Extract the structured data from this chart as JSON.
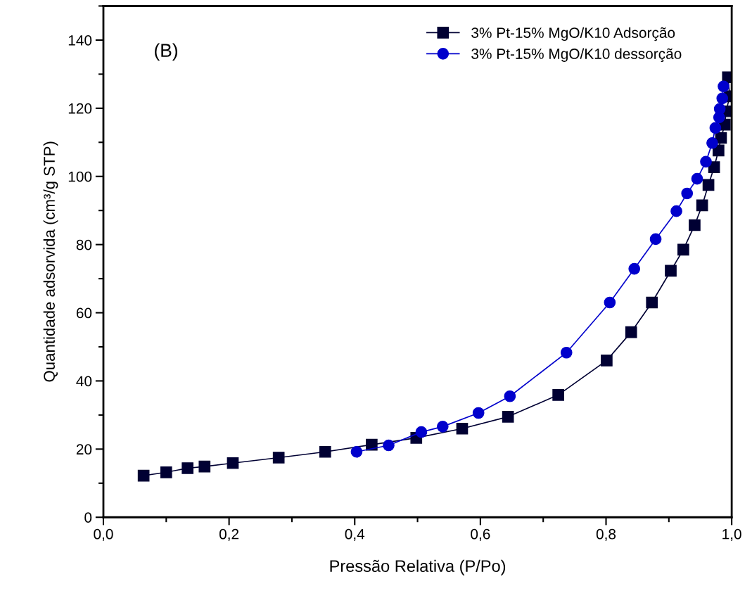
{
  "chart_data": {
    "type": "line",
    "xlabel": "Pressão Relativa (P/Po)",
    "ylabel": "Quantidade adsorvida (cm³/g STP)",
    "annotations": [
      "(B)"
    ],
    "xlim": [
      0,
      1.0
    ],
    "ylim": [
      0,
      150
    ],
    "xticks": [
      {
        "value": 0,
        "label": "0,0"
      },
      {
        "value": 0.2,
        "label": "0,2"
      },
      {
        "value": 0.4,
        "label": "0,4"
      },
      {
        "value": 0.6,
        "label": "0,6"
      },
      {
        "value": 0.8,
        "label": "0,8"
      },
      {
        "value": 1.0,
        "label": "1,0"
      }
    ],
    "yticks": [
      0,
      20,
      40,
      60,
      80,
      100,
      120,
      140
    ],
    "grid": false,
    "legend": "top right",
    "line_style": "solid",
    "series": [
      {
        "name": "3% Pt-15% MgO/K10 Adsorção",
        "color": "#000033",
        "marker": "square",
        "x": [
          0.064,
          0.1,
          0.134,
          0.161,
          0.206,
          0.279,
          0.353,
          0.427,
          0.498,
          0.571,
          0.644,
          0.724,
          0.801,
          0.84,
          0.873,
          0.903,
          0.923,
          0.941,
          0.953,
          0.963,
          0.972,
          0.979,
          0.983,
          0.989,
          0.991,
          0.997,
          0.994
        ],
        "values": [
          12.2,
          13.2,
          14.4,
          14.9,
          15.9,
          17.5,
          19.2,
          21.3,
          23.3,
          26.0,
          29.5,
          35.9,
          46.0,
          54.3,
          63.0,
          72.3,
          78.5,
          85.7,
          91.5,
          97.5,
          102.7,
          107.6,
          111.3,
          115.2,
          119.1,
          123.5,
          129.1
        ]
      },
      {
        "name": "3% Pt-15% MgO/K10 dessorção",
        "color": "#0000cc",
        "marker": "circle",
        "x": [
          0.987,
          0.985,
          0.981,
          0.98,
          0.974,
          0.969,
          0.959,
          0.945,
          0.929,
          0.912,
          0.879,
          0.845,
          0.806,
          0.737,
          0.647,
          0.597,
          0.54,
          0.506,
          0.454,
          0.403
        ],
        "values": [
          126.4,
          122.9,
          119.8,
          117.3,
          114.2,
          109.8,
          104.3,
          99.3,
          95.0,
          89.8,
          81.6,
          72.9,
          63.0,
          48.3,
          35.5,
          30.6,
          26.6,
          25.0,
          21.1,
          19.2
        ]
      }
    ]
  }
}
